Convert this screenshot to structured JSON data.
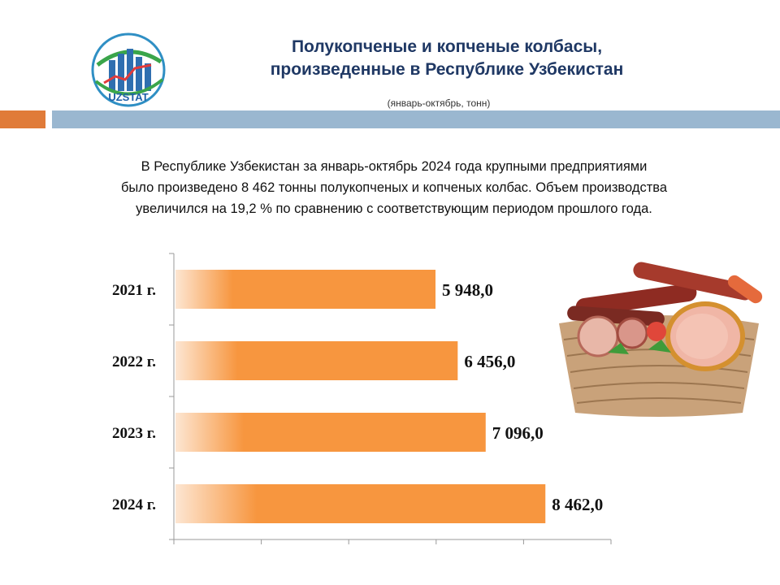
{
  "logo": {
    "text": "UZSTAT"
  },
  "header": {
    "title_line1": "Полукопченые и копченые колбасы,",
    "title_line2": "произведенные в Республике Узбекистан",
    "subtitle": "(январь-октябрь, тонн)"
  },
  "description": {
    "line1": "В Республике  Узбекистан за январь-октябрь  2024 года крупными  предприятиями",
    "line2": "было произведено  8 462 тонны полукопченых  и копченых колбас. Объем производства",
    "line3": "увеличился  на 19,2 % по сравнению  с соответствующим периодом  прошлого  года."
  },
  "colors": {
    "bar": "#f7963f",
    "title": "#1f3864",
    "band_orange": "#e07b39",
    "band_blue": "#9ab7d0"
  },
  "chart_data": {
    "type": "bar",
    "orientation": "horizontal",
    "categories": [
      "2021 г.",
      "2022 г.",
      "2023 г.",
      "2024 г."
    ],
    "values": [
      5948.0,
      6456.0,
      7096.0,
      8462.0
    ],
    "value_labels": [
      "5 948,0",
      "6 456,0",
      "7 096,0",
      "8 462,0"
    ],
    "title": "",
    "xlabel": "",
    "ylabel": "",
    "xlim": [
      0,
      10000
    ],
    "grid": false,
    "legend": "none"
  }
}
